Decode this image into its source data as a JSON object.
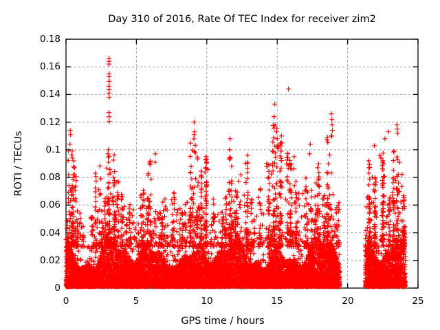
{
  "chart_data": {
    "type": "scatter",
    "title": "Day 310 of 2016, Rate Of TEC Index for receiver zim2",
    "xlabel": "GPS time / hours",
    "ylabel": "ROTI / TECUs",
    "xlim": [
      0,
      25
    ],
    "ylim": [
      0,
      0.18
    ],
    "xticks": {
      "values": [
        0,
        5,
        10,
        15,
        20,
        25
      ],
      "labels": [
        "0",
        "5",
        "10",
        "15",
        "20",
        "25"
      ]
    },
    "yticks": {
      "values": [
        0,
        0.02,
        0.04,
        0.06,
        0.08,
        0.1,
        0.12,
        0.14,
        0.16,
        0.18
      ],
      "labels": [
        "0",
        "0.02",
        "0.04",
        "0.06",
        "0.08",
        "0.1",
        "0.12",
        "0.14",
        "0.16",
        "0.18"
      ]
    },
    "grid": {
      "show": true,
      "color": "#9e9e9e",
      "dash": "3,3",
      "position": "both-axes"
    },
    "marker": {
      "shape": "plus",
      "color": "#ff0000",
      "size": 7,
      "stroke_width": 1.2
    },
    "axis_color": "#000000",
    "background": "#ffffff",
    "legend": "none",
    "series": [
      {
        "name": "ROTI",
        "active_intervals": [
          [
            0,
            19.43
          ],
          [
            21.25,
            24.12
          ]
        ],
        "baseline_band": {
          "y_min": 0.001,
          "y_top_typical": 0.025,
          "y_top_max": 0.045
        },
        "envelope_bins": [
          [
            0.0,
            0.15,
            0.05
          ],
          [
            0.15,
            0.45,
            0.1
          ],
          [
            0.45,
            0.75,
            0.088
          ],
          [
            0.75,
            1.05,
            0.056
          ],
          [
            1.05,
            1.5,
            0.045
          ],
          [
            1.5,
            1.95,
            0.052
          ],
          [
            1.95,
            2.5,
            0.09
          ],
          [
            2.5,
            2.85,
            0.065
          ],
          [
            2.85,
            3.1,
            0.102
          ],
          [
            3.1,
            3.45,
            0.098
          ],
          [
            3.45,
            3.85,
            0.078
          ],
          [
            3.85,
            4.3,
            0.068
          ],
          [
            4.3,
            4.8,
            0.062
          ],
          [
            4.8,
            5.25,
            0.048
          ],
          [
            5.25,
            5.8,
            0.072
          ],
          [
            5.8,
            6.4,
            0.092
          ],
          [
            6.4,
            6.85,
            0.055
          ],
          [
            6.85,
            7.3,
            0.065
          ],
          [
            7.3,
            7.85,
            0.07
          ],
          [
            7.85,
            8.3,
            0.058
          ],
          [
            8.3,
            8.8,
            0.062
          ],
          [
            8.8,
            9.2,
            0.105
          ],
          [
            9.2,
            9.65,
            0.095
          ],
          [
            9.65,
            10.2,
            0.094
          ],
          [
            10.2,
            10.65,
            0.066
          ],
          [
            10.65,
            11.1,
            0.056
          ],
          [
            11.1,
            11.55,
            0.066
          ],
          [
            11.55,
            11.85,
            0.095
          ],
          [
            11.85,
            12.35,
            0.072
          ],
          [
            12.35,
            12.95,
            0.092
          ],
          [
            12.95,
            13.45,
            0.066
          ],
          [
            13.45,
            14.05,
            0.073
          ],
          [
            14.05,
            14.6,
            0.09
          ],
          [
            14.6,
            15.1,
            0.118
          ],
          [
            15.1,
            15.55,
            0.105
          ],
          [
            15.55,
            15.95,
            0.098
          ],
          [
            15.95,
            16.35,
            0.09
          ],
          [
            16.35,
            16.85,
            0.07
          ],
          [
            16.85,
            17.4,
            0.08
          ],
          [
            17.4,
            18.05,
            0.09
          ],
          [
            18.05,
            18.55,
            0.067
          ],
          [
            18.55,
            19.0,
            0.11
          ],
          [
            19.0,
            19.43,
            0.062
          ],
          [
            21.25,
            21.75,
            0.09
          ],
          [
            21.75,
            22.25,
            0.08
          ],
          [
            22.25,
            22.75,
            0.098
          ],
          [
            22.75,
            23.3,
            0.1
          ],
          [
            23.3,
            23.75,
            0.095
          ],
          [
            23.75,
            24.12,
            0.068
          ]
        ],
        "peak_points": [
          [
            3.05,
            0.166
          ],
          [
            3.06,
            0.164
          ],
          [
            3.05,
            0.162
          ],
          [
            3.06,
            0.155
          ],
          [
            3.05,
            0.153
          ],
          [
            3.07,
            0.1495
          ],
          [
            3.05,
            0.146
          ],
          [
            3.06,
            0.1435
          ],
          [
            3.05,
            0.141
          ],
          [
            3.07,
            0.138
          ],
          [
            3.05,
            0.127
          ],
          [
            3.06,
            0.124
          ],
          [
            3.07,
            0.1205
          ],
          [
            0.3,
            0.114
          ],
          [
            0.32,
            0.111
          ],
          [
            0.28,
            0.104
          ],
          [
            0.55,
            0.092
          ],
          [
            0.6,
            0.087
          ],
          [
            0.62,
            0.082
          ],
          [
            6.35,
            0.097
          ],
          [
            6.33,
            0.091
          ],
          [
            9.1,
            0.12
          ],
          [
            9.12,
            0.113
          ],
          [
            9.1,
            0.111
          ],
          [
            9.08,
            0.108
          ],
          [
            9.95,
            0.095
          ],
          [
            10.0,
            0.091
          ],
          [
            9.9,
            0.087
          ],
          [
            11.65,
            0.108
          ],
          [
            11.62,
            0.1
          ],
          [
            11.68,
            0.094
          ],
          [
            12.9,
            0.096
          ],
          [
            12.88,
            0.09
          ],
          [
            14.83,
            0.133
          ],
          [
            14.78,
            0.124
          ],
          [
            14.85,
            0.118
          ],
          [
            14.95,
            0.113
          ],
          [
            15.0,
            0.108
          ],
          [
            15.05,
            0.102
          ],
          [
            15.8,
            0.144
          ],
          [
            15.3,
            0.11
          ],
          [
            15.33,
            0.105
          ],
          [
            15.28,
            0.099
          ],
          [
            16.2,
            0.095
          ],
          [
            17.35,
            0.104
          ],
          [
            17.3,
            0.097
          ],
          [
            18.85,
            0.126
          ],
          [
            18.88,
            0.122
          ],
          [
            18.9,
            0.118
          ],
          [
            18.92,
            0.114
          ],
          [
            18.87,
            0.11
          ],
          [
            21.5,
            0.092
          ],
          [
            21.52,
            0.087
          ],
          [
            21.9,
            0.103
          ],
          [
            22.65,
            0.108
          ],
          [
            22.9,
            0.113
          ],
          [
            23.5,
            0.118
          ],
          [
            23.53,
            0.115
          ],
          [
            23.55,
            0.112
          ],
          [
            23.3,
            0.099
          ]
        ]
      }
    ],
    "render": {
      "seed": 1310,
      "baseline_points": 8200,
      "fuzz_points": 1500,
      "cluster_density": 760
    }
  }
}
